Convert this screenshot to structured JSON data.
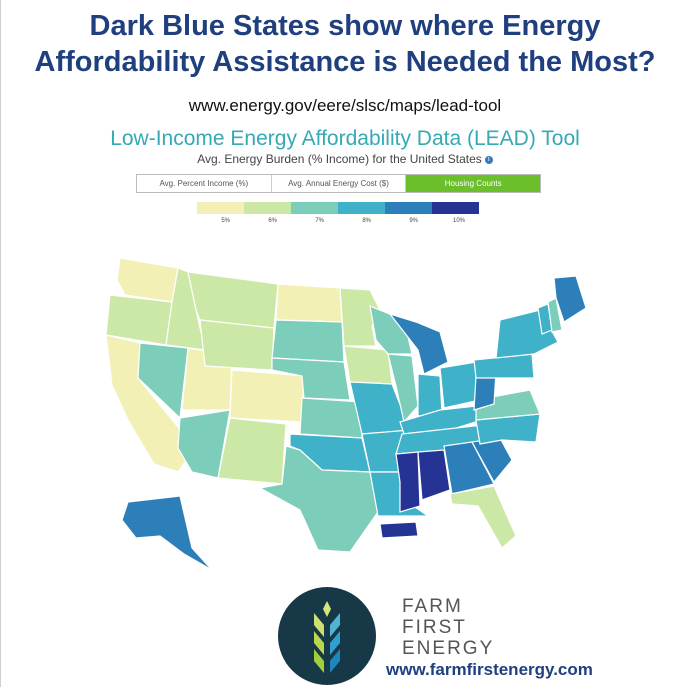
{
  "headline": {
    "line1": "Dark Blue States show where Energy",
    "line2": "Affordability Assistance is Needed the Most?"
  },
  "source_url": "www.energy.gov/eere/slsc/maps/lead-tool",
  "tool": {
    "title": "Low-Income Energy Affordability Data (LEAD) Tool",
    "subtitle": "Avg. Energy Burden (% Income) for the United States",
    "tabs": [
      {
        "label": "Avg. Percent Income (%)",
        "active": false
      },
      {
        "label": "Avg. Annual Energy Cost ($)",
        "active": false
      },
      {
        "label": "Housing Counts",
        "active": true
      }
    ]
  },
  "legend": {
    "bins": [
      {
        "label": "5%",
        "color": "#f2f0b4"
      },
      {
        "label": "6%",
        "color": "#cbe8a6"
      },
      {
        "label": "7%",
        "color": "#7ccdb9"
      },
      {
        "label": "8%",
        "color": "#3fb1c8"
      },
      {
        "label": "9%",
        "color": "#2c7fb8"
      },
      {
        "label": "10%",
        "color": "#253494"
      }
    ]
  },
  "map_regions": [
    {
      "name": "Washington",
      "bin": "5%"
    },
    {
      "name": "Oregon",
      "bin": "6%"
    },
    {
      "name": "California",
      "bin": "5%"
    },
    {
      "name": "Idaho",
      "bin": "6%"
    },
    {
      "name": "Nevada",
      "bin": "7%"
    },
    {
      "name": "Utah",
      "bin": "5%"
    },
    {
      "name": "Arizona",
      "bin": "7%"
    },
    {
      "name": "Montana",
      "bin": "6%"
    },
    {
      "name": "Wyoming",
      "bin": "6%"
    },
    {
      "name": "Colorado",
      "bin": "5%"
    },
    {
      "name": "New Mexico",
      "bin": "6%"
    },
    {
      "name": "North Dakota",
      "bin": "5%"
    },
    {
      "name": "South Dakota",
      "bin": "7%"
    },
    {
      "name": "Nebraska",
      "bin": "7%"
    },
    {
      "name": "Kansas",
      "bin": "7%"
    },
    {
      "name": "Oklahoma",
      "bin": "8%"
    },
    {
      "name": "Texas",
      "bin": "7%"
    },
    {
      "name": "Minnesota",
      "bin": "6%"
    },
    {
      "name": "Iowa",
      "bin": "6%"
    },
    {
      "name": "Missouri",
      "bin": "8%"
    },
    {
      "name": "Arkansas",
      "bin": "8%"
    },
    {
      "name": "Louisiana",
      "bin": "8%"
    },
    {
      "name": "Wisconsin",
      "bin": "7%"
    },
    {
      "name": "Illinois",
      "bin": "7%"
    },
    {
      "name": "Michigan",
      "bin": "9%"
    },
    {
      "name": "Indiana",
      "bin": "8%"
    },
    {
      "name": "Ohio",
      "bin": "8%"
    },
    {
      "name": "Kentucky",
      "bin": "8%"
    },
    {
      "name": "Tennessee",
      "bin": "8%"
    },
    {
      "name": "Mississippi",
      "bin": "10%"
    },
    {
      "name": "Alabama",
      "bin": "10%"
    },
    {
      "name": "Georgia",
      "bin": "9%"
    },
    {
      "name": "Florida",
      "bin": "6%"
    },
    {
      "name": "South Carolina",
      "bin": "9%"
    },
    {
      "name": "North Carolina",
      "bin": "8%"
    },
    {
      "name": "Virginia",
      "bin": "7%"
    },
    {
      "name": "West Virginia",
      "bin": "9%"
    },
    {
      "name": "Pennsylvania",
      "bin": "8%"
    },
    {
      "name": "New York",
      "bin": "8%"
    },
    {
      "name": "Vermont",
      "bin": "8%"
    },
    {
      "name": "New Hampshire",
      "bin": "7%"
    },
    {
      "name": "Maine",
      "bin": "9%"
    },
    {
      "name": "Alaska",
      "bin": "9%"
    },
    {
      "name": "Puerto Rico",
      "bin": "10%"
    }
  ],
  "brand": {
    "line1": "FARM",
    "line2": "FIRST",
    "line3": "ENERGY",
    "url": "www.farmfirstenergy.com"
  }
}
